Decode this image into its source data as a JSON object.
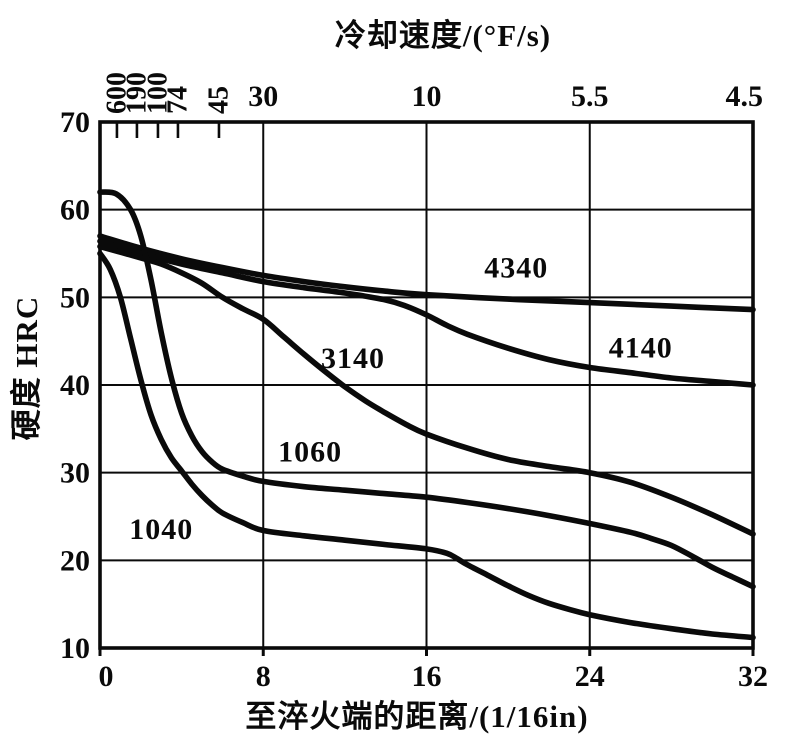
{
  "colors": {
    "background": "#ffffff",
    "ink": "#0a0a0a"
  },
  "titles": {
    "top_axis": "冷却速度/(°F/s)",
    "x_axis": "至淬火端的距离/(1/16in)",
    "y_axis": "硬度 HRC"
  },
  "chart_data": {
    "type": "line",
    "title": "冷却速度/(°F/s)",
    "xlabel": "至淬火端的距离/(1/16in)",
    "ylabel": "硬度 HRC",
    "xlim": [
      0,
      32
    ],
    "ylim": [
      10,
      70
    ],
    "grid": true,
    "legend_position": "labels-on-curves",
    "x_ticks": [
      0,
      8,
      16,
      24,
      32
    ],
    "y_ticks": [
      70,
      60,
      50,
      40,
      30,
      20,
      10
    ],
    "top_axis_ticks": [
      {
        "label": "600",
        "x": 0.83,
        "rotated": true
      },
      {
        "label": "190",
        "x": 1.81,
        "rotated": true
      },
      {
        "label": "100",
        "x": 2.84,
        "rotated": true
      },
      {
        "label": "74",
        "x": 3.82,
        "rotated": true
      },
      {
        "label": "45",
        "x": 5.83,
        "rotated": true
      },
      {
        "label": "30",
        "x": 8,
        "rotated": false
      },
      {
        "label": "10",
        "x": 16,
        "rotated": false
      },
      {
        "label": "5.5",
        "x": 24,
        "rotated": false
      },
      {
        "label": "4.5",
        "x": 31.57,
        "rotated": false
      }
    ],
    "series": [
      {
        "name": "4340",
        "label_pos": [
          20.4,
          53.4
        ],
        "points": [
          [
            0,
            57
          ],
          [
            2,
            55.6
          ],
          [
            4,
            54.4
          ],
          [
            6,
            53.4
          ],
          [
            8,
            52.5
          ],
          [
            10,
            51.8
          ],
          [
            12,
            51.2
          ],
          [
            14,
            50.7
          ],
          [
            16,
            50.3
          ],
          [
            20,
            49.8
          ],
          [
            24,
            49.4
          ],
          [
            28,
            49.0
          ],
          [
            32,
            48.6
          ]
        ]
      },
      {
        "name": "4140",
        "label_pos": [
          26.5,
          44.3
        ],
        "points": [
          [
            0,
            56.4
          ],
          [
            2,
            55.0
          ],
          [
            4,
            53.8
          ],
          [
            6,
            52.8
          ],
          [
            8,
            51.8
          ],
          [
            10,
            51.1
          ],
          [
            12,
            50.5
          ],
          [
            14,
            49.7
          ],
          [
            15,
            49.0
          ],
          [
            16,
            48.0
          ],
          [
            17,
            46.8
          ],
          [
            18,
            45.8
          ],
          [
            20,
            44.2
          ],
          [
            22,
            42.9
          ],
          [
            24,
            42.0
          ],
          [
            26,
            41.4
          ],
          [
            28,
            40.8
          ],
          [
            30,
            40.4
          ],
          [
            32,
            40.0
          ]
        ]
      },
      {
        "name": "3140",
        "label_pos": [
          12.4,
          43.1
        ],
        "points": [
          [
            0,
            55.8
          ],
          [
            2,
            54.5
          ],
          [
            3,
            53.8
          ],
          [
            4,
            52.8
          ],
          [
            5,
            51.6
          ],
          [
            6,
            50.0
          ],
          [
            7,
            48.7
          ],
          [
            8,
            47.5
          ],
          [
            9,
            45.5
          ],
          [
            10,
            43.5
          ],
          [
            11,
            41.6
          ],
          [
            12,
            39.8
          ],
          [
            13,
            38.2
          ],
          [
            14,
            36.8
          ],
          [
            15,
            35.5
          ],
          [
            16,
            34.4
          ],
          [
            18,
            32.8
          ],
          [
            20,
            31.5
          ],
          [
            22,
            30.7
          ],
          [
            24,
            30.0
          ],
          [
            26,
            28.9
          ],
          [
            28,
            27.2
          ],
          [
            30,
            25.2
          ],
          [
            32,
            23.0
          ]
        ]
      },
      {
        "name": "1060",
        "label_pos": [
          10.3,
          32.4
        ],
        "points": [
          [
            0,
            62
          ],
          [
            0.8,
            61.8
          ],
          [
            1.5,
            60.0
          ],
          [
            2,
            57.0
          ],
          [
            2.5,
            52.0
          ],
          [
            3,
            46.0
          ],
          [
            3.5,
            40.8
          ],
          [
            4,
            36.8
          ],
          [
            4.5,
            34.2
          ],
          [
            5,
            32.4
          ],
          [
            5.5,
            31.2
          ],
          [
            6,
            30.4
          ],
          [
            7,
            29.6
          ],
          [
            8,
            29.0
          ],
          [
            10,
            28.4
          ],
          [
            12,
            28.0
          ],
          [
            14,
            27.6
          ],
          [
            16,
            27.2
          ],
          [
            18,
            26.6
          ],
          [
            20,
            25.9
          ],
          [
            22,
            25.1
          ],
          [
            24,
            24.2
          ],
          [
            26,
            23.2
          ],
          [
            27,
            22.5
          ],
          [
            28,
            21.7
          ],
          [
            29,
            20.5
          ],
          [
            30,
            19.2
          ],
          [
            31,
            18.1
          ],
          [
            32,
            17.0
          ]
        ]
      },
      {
        "name": "1040",
        "label_pos": [
          3.0,
          23.6
        ],
        "points": [
          [
            0,
            55
          ],
          [
            0.5,
            53.2
          ],
          [
            1,
            50.0
          ],
          [
            1.5,
            45.3
          ],
          [
            2,
            40.6
          ],
          [
            2.5,
            36.6
          ],
          [
            3,
            33.8
          ],
          [
            3.5,
            31.7
          ],
          [
            4,
            30.2
          ],
          [
            4.5,
            28.7
          ],
          [
            5,
            27.4
          ],
          [
            5.5,
            26.3
          ],
          [
            6,
            25.4
          ],
          [
            7,
            24.3
          ],
          [
            8,
            23.4
          ],
          [
            10,
            22.8
          ],
          [
            12,
            22.3
          ],
          [
            14,
            21.8
          ],
          [
            16,
            21.3
          ],
          [
            17,
            20.8
          ],
          [
            17.5,
            20.2
          ],
          [
            18,
            19.5
          ],
          [
            19,
            18.3
          ],
          [
            20,
            17.1
          ],
          [
            21,
            16.0
          ],
          [
            22,
            15.1
          ],
          [
            23,
            14.4
          ],
          [
            24,
            13.8
          ],
          [
            26,
            12.9
          ],
          [
            28,
            12.2
          ],
          [
            30,
            11.6
          ],
          [
            32,
            11.2
          ]
        ]
      }
    ]
  }
}
